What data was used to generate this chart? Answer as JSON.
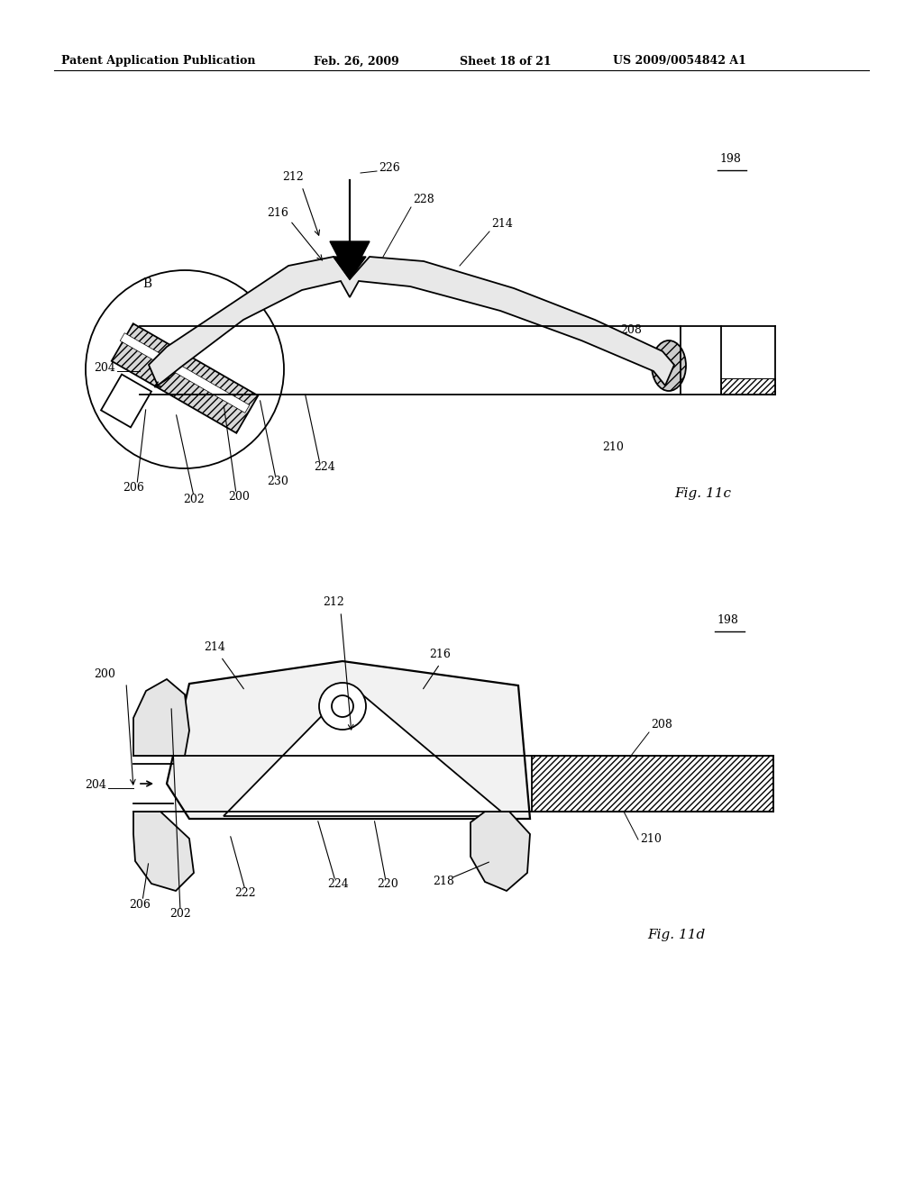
{
  "background_color": "#ffffff",
  "header_left": "Patent Application Publication",
  "header_date": "Feb. 26, 2009",
  "header_sheet": "Sheet 18 of 21",
  "header_patent": "US 2009/0054842 A1",
  "fig11c_caption": "Fig. 11c",
  "fig11d_caption": "Fig. 11d",
  "lw": 1.3
}
